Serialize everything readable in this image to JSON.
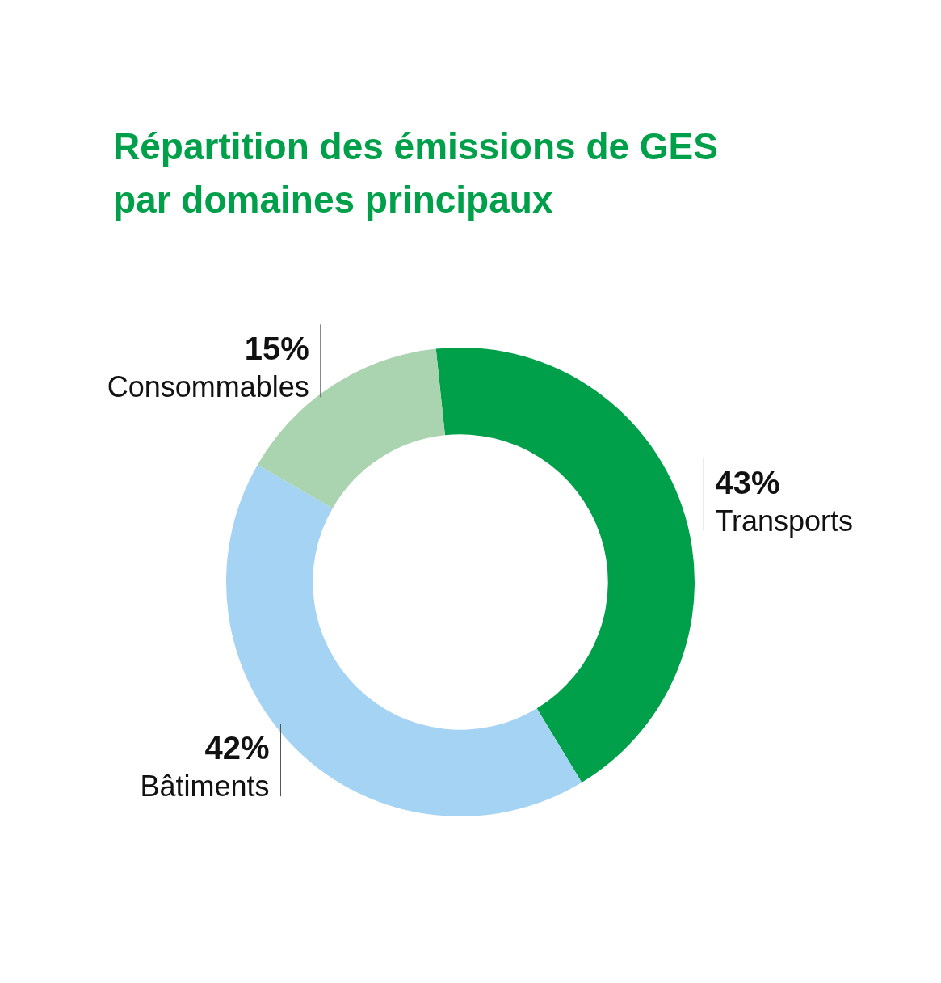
{
  "chart_data": {
    "type": "donut",
    "title": "Répartition des émissions de GES par domaines principaux",
    "categories": [
      "Transports",
      "Bâtiments",
      "Consommables"
    ],
    "values": [
      43,
      42,
      15
    ],
    "colors": [
      "#00a04b",
      "#a5d3f3",
      "#aad3af"
    ],
    "value_labels": [
      "43%",
      "42%",
      "15%"
    ]
  }
}
